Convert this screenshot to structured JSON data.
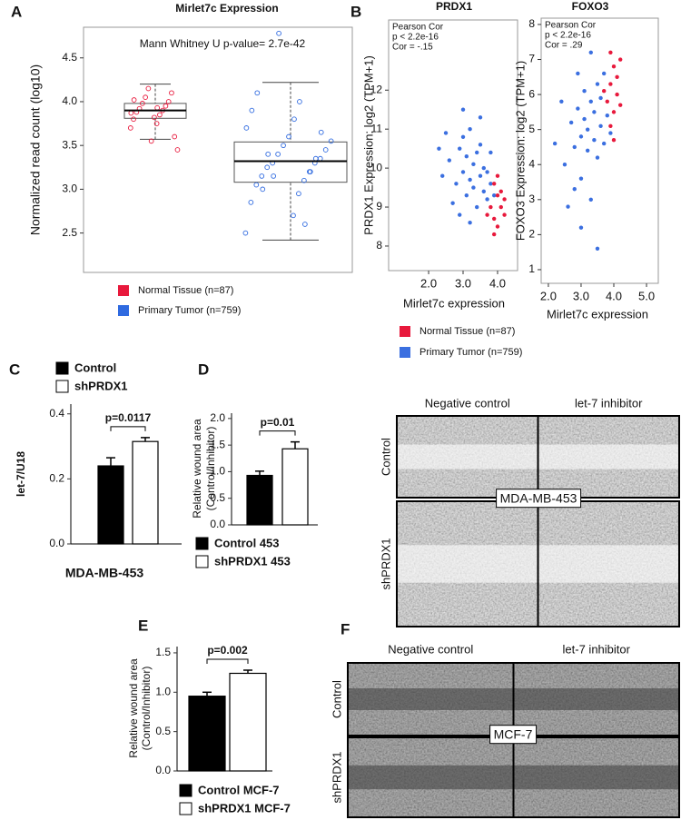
{
  "chart_data": [
    {
      "type": "box",
      "panel": "A",
      "title": "Mirlet7c Expression",
      "ylabel": "Normalized read count (log10)",
      "annotation": "Mann Whitney U p-value= 2.7e-42",
      "ylim": [
        2.05,
        4.85
      ],
      "yticks": [
        2.5,
        {
          "value": 3,
          "label": "3.0"
        },
        3.5,
        {
          "value": 4,
          "label": "4.0"
        },
        4.5
      ],
      "series": [
        {
          "name": "Normal Tissue (n=87)",
          "color": "#e8193c",
          "min": 3.57,
          "q1": 3.81,
          "median": 3.9,
          "q3": 3.98,
          "max": 4.2,
          "points": [
            3.7,
            3.75,
            3.8,
            3.85,
            3.88,
            3.9,
            3.92,
            3.95,
            3.98,
            4.0,
            4.05,
            4.1,
            4.15,
            3.6,
            3.55,
            3.45,
            3.82,
            3.87,
            3.93,
            4.02
          ]
        },
        {
          "name": "Primary Tumor (n=759)",
          "color": "#2f6ae0",
          "min": 2.42,
          "q1": 3.08,
          "median": 3.32,
          "q3": 3.54,
          "max": 4.22,
          "points": [
            2.5,
            2.7,
            2.85,
            2.95,
            3.05,
            3.1,
            3.15,
            3.2,
            3.25,
            3.3,
            3.3,
            3.35,
            3.4,
            3.45,
            3.5,
            3.55,
            3.6,
            3.7,
            3.8,
            3.9,
            4.0,
            4.1,
            2.6,
            3.0,
            3.2,
            3.4,
            3.35,
            3.15,
            3.65,
            4.78
          ]
        }
      ]
    },
    {
      "type": "scatter",
      "panel": "B",
      "title": "PRDX1",
      "ylabel": "PRDX1  Expression:  log2 (TPM+1)",
      "xlabel": "Mirlet7c expression",
      "annotation": [
        "Pearson Cor",
        "p < 2.2e-16",
        "Cor = -.15"
      ],
      "xlim": [
        0.84,
        4.58
      ],
      "xticks": [
        {
          "value": 2,
          "label": "2.0"
        },
        {
          "value": 3,
          "label": "3.0"
        },
        {
          "value": 4,
          "label": "4.0"
        }
      ],
      "ylim": [
        7.37,
        13.8
      ],
      "yticks": [
        8,
        9,
        10,
        11,
        12
      ],
      "series": [
        {
          "name": "Primary Tumor (n=759)",
          "color": "#3b6fe0",
          "x": [
            2.6,
            2.8,
            2.9,
            3.0,
            3.0,
            3.1,
            3.1,
            3.2,
            3.2,
            3.3,
            3.3,
            3.4,
            3.4,
            3.5,
            3.5,
            3.6,
            3.6,
            3.7,
            3.7,
            3.8,
            2.4,
            2.5,
            2.7,
            3.9,
            3.2,
            3.0,
            2.9,
            3.5,
            3.8,
            2.3
          ],
          "values": [
            10.2,
            9.6,
            10.5,
            9.9,
            10.8,
            9.3,
            10.3,
            9.7,
            11.0,
            10.1,
            9.5,
            10.4,
            9.0,
            9.8,
            10.6,
            9.4,
            10.0,
            9.2,
            9.9,
            9.6,
            9.8,
            10.9,
            9.1,
            9.3,
            8.6,
            11.5,
            8.8,
            11.3,
            10.4,
            10.5
          ]
        },
        {
          "name": "Normal Tissue (n=87)",
          "color": "#e8193c",
          "x": [
            3.8,
            3.9,
            4.0,
            4.0,
            4.1,
            3.9,
            4.2,
            4.1,
            3.7,
            4.0,
            4.2,
            3.9
          ],
          "values": [
            9.0,
            8.7,
            9.3,
            8.5,
            9.0,
            9.6,
            8.8,
            9.4,
            8.8,
            9.8,
            9.2,
            8.3
          ]
        }
      ]
    },
    {
      "type": "scatter",
      "title": "FOXO3",
      "ylabel": "FOXO3 Expression:  log2 (TPM+1)",
      "xlabel": "Mirlet7c expression",
      "annotation": [
        "Pearson Cor",
        "p < 2.2e-16",
        "Cor = .29"
      ],
      "xlim": [
        1.78,
        5.36
      ],
      "xticks": [
        {
          "value": 2,
          "label": "2.0"
        },
        {
          "value": 3,
          "label": "3.0"
        },
        {
          "value": 4,
          "label": "4.0"
        },
        {
          "value": 5,
          "label": "5.0"
        }
      ],
      "ylim": [
        0.61,
        8.18
      ],
      "yticks": [
        1,
        2,
        3,
        4,
        5,
        6,
        7,
        8
      ],
      "series": [
        {
          "color": "#3b6fe0",
          "x": [
            2.5,
            2.7,
            2.8,
            2.9,
            3.0,
            3.0,
            3.1,
            3.1,
            3.2,
            3.2,
            3.3,
            3.3,
            3.4,
            3.4,
            3.5,
            3.5,
            3.6,
            3.6,
            3.7,
            3.8,
            2.4,
            2.6,
            2.9,
            3.0,
            3.3,
            3.5,
            2.8,
            3.7,
            3.9,
            2.2
          ],
          "values": [
            4.0,
            5.2,
            4.5,
            5.6,
            4.8,
            3.6,
            5.3,
            6.1,
            4.4,
            5.0,
            5.8,
            3.0,
            4.7,
            5.5,
            6.3,
            4.2,
            5.1,
            5.9,
            4.6,
            5.4,
            5.8,
            2.8,
            6.6,
            2.2,
            7.2,
            1.6,
            3.3,
            6.6,
            4.9,
            4.6
          ]
        },
        {
          "color": "#e8193c",
          "x": [
            3.8,
            3.9,
            4.0,
            4.0,
            4.1,
            3.9,
            4.2,
            4.1,
            3.7,
            4.0,
            4.2,
            3.9
          ],
          "values": [
            5.8,
            6.3,
            5.5,
            6.8,
            6.0,
            5.1,
            7.0,
            6.5,
            6.1,
            4.7,
            5.7,
            7.2
          ]
        }
      ]
    },
    {
      "type": "bar",
      "panel": "C",
      "ylabel": "let-7/U18",
      "xlabel": "MDA-MB-453",
      "significance": "p=0.0117",
      "ylim": [
        0,
        0.43
      ],
      "yticks": [
        {
          "value": 0,
          "label": "0.0"
        },
        {
          "value": 0.2,
          "label": "0.2"
        },
        {
          "value": 0.4,
          "label": "0.4"
        }
      ],
      "series": [
        {
          "name": "Control",
          "color": "#000000",
          "values": [
            0.24
          ],
          "errors": [
            0.025
          ]
        },
        {
          "name": "shPRDX1",
          "color": "#ffffff",
          "values": [
            0.315
          ],
          "errors": [
            0.012
          ]
        }
      ]
    },
    {
      "type": "bar",
      "panel": "D",
      "ylabel": [
        "Relative wound area",
        "(Control/Inhibitor)"
      ],
      "significance": "p=0.01",
      "ylim": [
        0,
        2.1
      ],
      "yticks": [
        {
          "value": 0,
          "label": "0.0"
        },
        {
          "value": 0.5,
          "label": "0.5"
        },
        {
          "value": 1,
          "label": "1.0"
        },
        {
          "value": 1.5,
          "label": "1.5"
        },
        {
          "value": 2,
          "label": "2.0"
        }
      ],
      "series": [
        {
          "name": "Control 453",
          "color": "#000000",
          "values": [
            0.93
          ],
          "errors": [
            0.08
          ]
        },
        {
          "name": "shPRDX1 453",
          "color": "#ffffff",
          "values": [
            1.43
          ],
          "errors": [
            0.13
          ]
        }
      ]
    },
    {
      "type": "bar",
      "panel": "E",
      "ylabel": [
        "Relative wound area",
        "(Control/Inhibitor)"
      ],
      "significance": "p=0.002",
      "ylim": [
        0,
        1.58
      ],
      "yticks": [
        {
          "value": 0,
          "label": "0.0"
        },
        {
          "value": 0.5,
          "label": "0.5"
        },
        {
          "value": 1,
          "label": "1.0"
        },
        {
          "value": 1.5,
          "label": "1.5"
        }
      ],
      "series": [
        {
          "name": "Control  MCF-7",
          "color": "#000000",
          "values": [
            0.95
          ],
          "errors": [
            0.05
          ]
        },
        {
          "name": "shPRDX1 MCF-7",
          "color": "#ffffff",
          "values": [
            1.24
          ],
          "errors": [
            0.04
          ]
        }
      ]
    }
  ],
  "micrographs": [
    {
      "columns": [
        "Negative control",
        "let-7 inhibitor"
      ],
      "rows": [
        "Control",
        "shPRDX1"
      ],
      "cell_line": "MDA-MB-453"
    },
    {
      "panel": "F",
      "columns": [
        "Negative control",
        "let-7 inhibitor"
      ],
      "rows": [
        "Control",
        "shPRDX1"
      ],
      "cell_line": "MCF-7"
    }
  ]
}
